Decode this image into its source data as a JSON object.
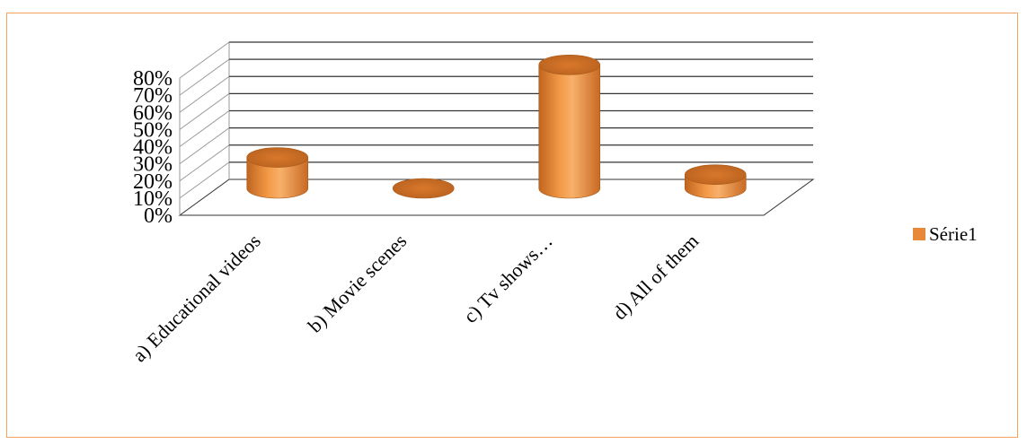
{
  "chart_data": {
    "type": "bar",
    "style": "3d-cylinder",
    "categories": [
      "a) Educational videos",
      "b) Movie scenes",
      "c) Tv shows…",
      "d) All of them"
    ],
    "series": [
      {
        "name": "Série1",
        "values": [
          0.18,
          0.0,
          0.72,
          0.08
        ],
        "color": "#E8893A"
      }
    ],
    "yticks": [
      "0%",
      "10%",
      "20%",
      "30%",
      "40%",
      "50%",
      "60%",
      "70%",
      "80%"
    ],
    "ylim": [
      0,
      0.8
    ],
    "grid": true,
    "legend_position": "right"
  },
  "colors": {
    "frame_border": "#F4A460",
    "bar_fill": "#E8893A",
    "bar_dark": "#B8611E",
    "bar_light": "#F6B06A",
    "grid": "#333333",
    "wall": "#999999"
  }
}
